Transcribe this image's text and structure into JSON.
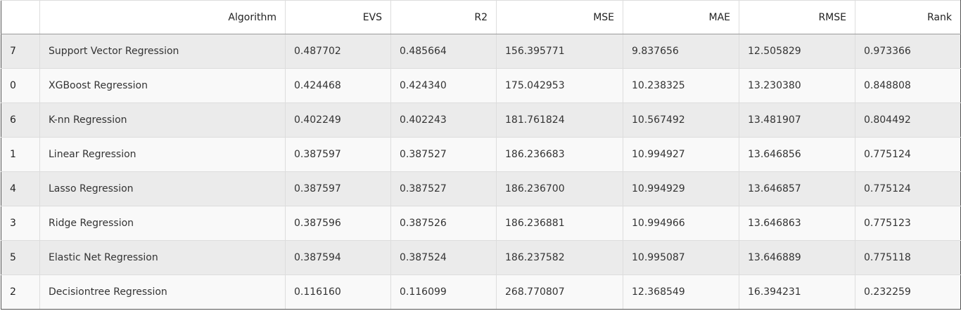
{
  "table": {
    "headers": [
      "",
      "Algorithm",
      "EVS",
      "R2",
      "MSE",
      "MAE",
      "RMSE",
      "Rank"
    ],
    "rows": [
      {
        "index": "7",
        "algorithm": "Support Vector Regression",
        "evs": "0.487702",
        "r2": "0.485664",
        "mse": "156.395771",
        "mae": "9.837656",
        "rmse": "12.505829",
        "rank": "0.973366"
      },
      {
        "index": "0",
        "algorithm": "XGBoost Regression",
        "evs": "0.424468",
        "r2": "0.424340",
        "mse": "175.042953",
        "mae": "10.238325",
        "rmse": "13.230380",
        "rank": "0.848808"
      },
      {
        "index": "6",
        "algorithm": "K-nn Regression",
        "evs": "0.402249",
        "r2": "0.402243",
        "mse": "181.761824",
        "mae": "10.567492",
        "rmse": "13.481907",
        "rank": "0.804492"
      },
      {
        "index": "1",
        "algorithm": "Linear Regression",
        "evs": "0.387597",
        "r2": "0.387527",
        "mse": "186.236683",
        "mae": "10.994927",
        "rmse": "13.646856",
        "rank": "0.775124"
      },
      {
        "index": "4",
        "algorithm": "Lasso Regression",
        "evs": "0.387597",
        "r2": "0.387527",
        "mse": "186.236700",
        "mae": "10.994929",
        "rmse": "13.646857",
        "rank": "0.775124"
      },
      {
        "index": "3",
        "algorithm": "Ridge Regression",
        "evs": "0.387596",
        "r2": "0.387526",
        "mse": "186.236881",
        "mae": "10.994966",
        "rmse": "13.646863",
        "rank": "0.775123"
      },
      {
        "index": "5",
        "algorithm": "Elastic Net Regression",
        "evs": "0.387594",
        "r2": "0.387524",
        "mse": "186.237582",
        "mae": "10.995087",
        "rmse": "13.646889",
        "rank": "0.775118"
      },
      {
        "index": "2",
        "algorithm": "Decisiontree Regression",
        "evs": "0.116160",
        "r2": "0.116099",
        "mse": "268.770807",
        "mae": "12.368549",
        "rmse": "16.394231",
        "rank": "0.232259"
      }
    ]
  }
}
